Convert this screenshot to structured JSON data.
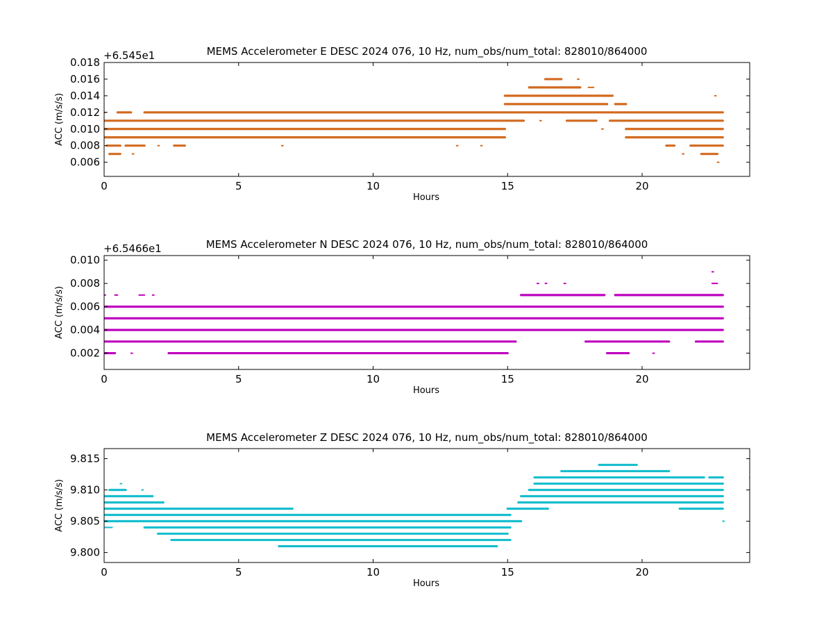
{
  "chart_data": [
    {
      "type": "scatter",
      "title": "MEMS Accelerometer E DESC 2024 076, 10 Hz, num_obs/num_total: 828010/864000",
      "xlabel": "Hours",
      "ylabel": "ACC (m/s/s)",
      "offset_label": "+6.545e1",
      "color": "#d2691e",
      "xlim": [
        0,
        24
      ],
      "ylim": [
        0.0043,
        0.018
      ],
      "xticks": [
        0,
        5,
        10,
        15,
        20
      ],
      "yticks": [
        0.006,
        0.008,
        0.01,
        0.012,
        0.014,
        0.016,
        0.018
      ],
      "ytick_labels": [
        "0.006",
        "0.008",
        "0.010",
        "0.012",
        "0.014",
        "0.016",
        "0.018"
      ],
      "series": [
        {
          "y": 0.016,
          "segments": [
            [
              16.4,
              17.0
            ],
            [
              17.6,
              17.6
            ]
          ]
        },
        {
          "y": 0.015,
          "segments": [
            [
              15.8,
              17.7
            ],
            [
              18.0,
              18.2
            ]
          ]
        },
        {
          "y": 0.014,
          "segments": [
            [
              14.9,
              18.9
            ],
            [
              22.7,
              22.7
            ]
          ]
        },
        {
          "y": 0.013,
          "segments": [
            [
              14.9,
              18.7
            ],
            [
              19.0,
              19.4
            ]
          ]
        },
        {
          "y": 0.012,
          "segments": [
            [
              0.0,
              0.05
            ],
            [
              0.5,
              1.0
            ],
            [
              1.5,
              23.0
            ]
          ]
        },
        {
          "y": 0.011,
          "segments": [
            [
              0.0,
              15.6
            ],
            [
              16.2,
              16.2
            ],
            [
              17.2,
              18.3
            ],
            [
              18.8,
              23.0
            ]
          ]
        },
        {
          "y": 0.01,
          "segments": [
            [
              0.0,
              14.9
            ],
            [
              18.5,
              18.5
            ],
            [
              19.4,
              23.0
            ]
          ]
        },
        {
          "y": 0.009,
          "segments": [
            [
              0.0,
              14.9
            ],
            [
              19.4,
              23.0
            ],
            [
              24.0,
              24.0
            ]
          ]
        },
        {
          "y": 0.008,
          "segments": [
            [
              0.1,
              0.6
            ],
            [
              0.8,
              1.5
            ],
            [
              2.0,
              2.0
            ],
            [
              2.6,
              3.0
            ],
            [
              6.6,
              6.6
            ],
            [
              13.1,
              13.1
            ],
            [
              14.0,
              14.0
            ],
            [
              20.9,
              21.2
            ],
            [
              21.8,
              23.0
            ],
            [
              24.0,
              24.0
            ]
          ]
        },
        {
          "y": 0.007,
          "segments": [
            [
              0.2,
              0.6
            ],
            [
              1.05,
              1.05
            ],
            [
              21.5,
              21.5
            ],
            [
              22.2,
              22.8
            ]
          ]
        },
        {
          "y": 0.006,
          "segments": [
            [
              22.8,
              22.8
            ]
          ]
        }
      ]
    },
    {
      "type": "scatter",
      "title": "MEMS Accelerometer N DESC 2024 076, 10 Hz, num_obs/num_total: 828010/864000",
      "xlabel": "Hours",
      "ylabel": "ACC (m/s/s)",
      "offset_label": "+6.5466e1",
      "color": "#bf00bf",
      "xlim": [
        0,
        24
      ],
      "ylim": [
        0.0006,
        0.0104
      ],
      "xticks": [
        0,
        5,
        10,
        15,
        20
      ],
      "yticks": [
        0.002,
        0.004,
        0.006,
        0.008,
        0.01
      ],
      "ytick_labels": [
        "0.002",
        "0.004",
        "0.006",
        "0.008",
        "0.010"
      ],
      "series": [
        {
          "y": 0.009,
          "segments": [
            [
              22.6,
              22.6
            ]
          ]
        },
        {
          "y": 0.008,
          "segments": [
            [
              16.1,
              16.1
            ],
            [
              16.4,
              16.4
            ],
            [
              17.1,
              17.1
            ],
            [
              22.6,
              22.8
            ]
          ]
        },
        {
          "y": 0.007,
          "segments": [
            [
              0.0,
              0.05
            ],
            [
              0.4,
              0.5
            ],
            [
              1.3,
              1.5
            ],
            [
              1.8,
              1.8
            ],
            [
              15.5,
              18.6
            ],
            [
              19.0,
              23.0
            ]
          ]
        },
        {
          "y": 0.006,
          "segments": [
            [
              0.0,
              23.0
            ],
            [
              24.0,
              24.0
            ]
          ]
        },
        {
          "y": 0.005,
          "segments": [
            [
              0.0,
              23.0
            ],
            [
              24.0,
              24.0
            ]
          ]
        },
        {
          "y": 0.004,
          "segments": [
            [
              0.0,
              23.0
            ]
          ]
        },
        {
          "y": 0.003,
          "segments": [
            [
              0.0,
              15.3
            ],
            [
              17.9,
              21.0
            ],
            [
              22.0,
              23.0
            ]
          ]
        },
        {
          "y": 0.002,
          "segments": [
            [
              0.0,
              0.4
            ],
            [
              1.0,
              1.0
            ],
            [
              2.4,
              15.0
            ],
            [
              18.7,
              19.5
            ],
            [
              20.4,
              20.4
            ]
          ]
        }
      ]
    },
    {
      "type": "scatter",
      "title": "MEMS Accelerometer Z DESC 2024 076, 10 Hz, num_obs/num_total: 828010/864000",
      "xlabel": "Hours",
      "ylabel": "ACC (m/s/s)",
      "offset_label": "",
      "color": "#17becf",
      "xlim": [
        0,
        24
      ],
      "ylim": [
        9.7984,
        9.8166
      ],
      "xticks": [
        0,
        5,
        10,
        15,
        20
      ],
      "yticks": [
        9.8,
        9.805,
        9.81,
        9.815
      ],
      "ytick_labels": [
        "9.800",
        "9.805",
        "9.810",
        "9.815"
      ],
      "series": [
        {
          "y": 9.814,
          "segments": [
            [
              18.4,
              19.8
            ]
          ]
        },
        {
          "y": 9.813,
          "segments": [
            [
              17.0,
              21.0
            ]
          ]
        },
        {
          "y": 9.812,
          "segments": [
            [
              16.0,
              22.3
            ],
            [
              22.5,
              23.0
            ],
            [
              24.0,
              24.0
            ]
          ]
        },
        {
          "y": 9.811,
          "segments": [
            [
              0.6,
              0.6
            ],
            [
              16.0,
              23.0
            ]
          ]
        },
        {
          "y": 9.81,
          "segments": [
            [
              0.2,
              0.8
            ],
            [
              1.4,
              1.4
            ],
            [
              15.8,
              23.0
            ],
            [
              24.0,
              24.0
            ]
          ]
        },
        {
          "y": 9.809,
          "segments": [
            [
              0.0,
              1.8
            ],
            [
              15.5,
              23.0
            ]
          ]
        },
        {
          "y": 9.808,
          "segments": [
            [
              0.0,
              2.2
            ],
            [
              15.4,
              23.0
            ]
          ]
        },
        {
          "y": 9.807,
          "segments": [
            [
              0.0,
              7.0
            ],
            [
              15.0,
              16.5
            ],
            [
              21.4,
              23.0
            ]
          ]
        },
        {
          "y": 9.806,
          "segments": [
            [
              0.0,
              15.1
            ]
          ]
        },
        {
          "y": 9.805,
          "segments": [
            [
              0.0,
              15.5
            ],
            [
              23.0,
              23.0
            ]
          ]
        },
        {
          "y": 9.804,
          "segments": [
            [
              0.0,
              0.3
            ],
            [
              1.5,
              15.1
            ]
          ]
        },
        {
          "y": 9.803,
          "segments": [
            [
              2.0,
              15.0
            ]
          ]
        },
        {
          "y": 9.802,
          "segments": [
            [
              2.5,
              15.1
            ]
          ]
        },
        {
          "y": 9.801,
          "segments": [
            [
              6.5,
              14.6
            ]
          ]
        }
      ]
    }
  ]
}
